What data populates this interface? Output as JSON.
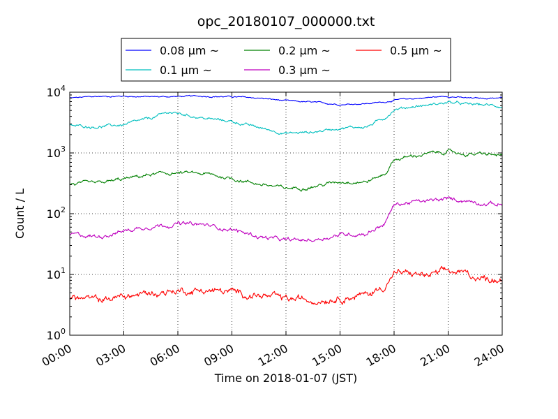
{
  "chart_data": {
    "type": "line",
    "title": "opc_20180107_000000.txt",
    "xlabel": "Time on 2018-01-07 (JST)",
    "ylabel": "Count / L",
    "y_scale": "log",
    "ylim": [
      1,
      10000
    ],
    "xlim": [
      "00:00",
      "24:00"
    ],
    "x_ticks": [
      "00:00",
      "03:00",
      "06:00",
      "09:00",
      "12:00",
      "15:00",
      "18:00",
      "21:00",
      "24:00"
    ],
    "y_ticks": [
      {
        "base": "10",
        "exp": "0"
      },
      {
        "base": "10",
        "exp": "1"
      },
      {
        "base": "10",
        "exp": "2"
      },
      {
        "base": "10",
        "exp": "3"
      },
      {
        "base": "10",
        "exp": "4"
      }
    ],
    "grid": true,
    "legend_position": "top-center",
    "series": [
      {
        "name": "0.08 µm ~",
        "color": "#0000ff",
        "x": [
          "00:00",
          "01:30",
          "03:00",
          "04:30",
          "06:00",
          "07:30",
          "09:00",
          "10:30",
          "12:00",
          "13:30",
          "15:00",
          "16:30",
          "17:30",
          "18:00",
          "19:00",
          "20:00",
          "21:00",
          "22:00",
          "23:00",
          "24:00"
        ],
        "values": [
          8000,
          8500,
          8600,
          8400,
          8500,
          8600,
          8400,
          8000,
          7200,
          6800,
          6300,
          6500,
          6900,
          7400,
          7800,
          8200,
          8600,
          8000,
          7900,
          8200
        ]
      },
      {
        "name": "0.1 µm ~",
        "color": "#00bfbf",
        "x": [
          "00:00",
          "01:30",
          "03:00",
          "04:30",
          "05:30",
          "06:30",
          "07:30",
          "09:00",
          "10:30",
          "12:00",
          "13:30",
          "15:00",
          "16:30",
          "17:30",
          "18:00",
          "19:00",
          "20:00",
          "21:00",
          "22:00",
          "23:00",
          "24:00"
        ],
        "values": [
          2800,
          2700,
          2900,
          3700,
          4700,
          4200,
          3700,
          3300,
          2600,
          2100,
          2200,
          2600,
          2700,
          3800,
          5200,
          5800,
          6200,
          6800,
          6300,
          6200,
          5800
        ]
      },
      {
        "name": "0.2 µm ~",
        "color": "#008000",
        "x": [
          "00:00",
          "01:30",
          "03:00",
          "04:30",
          "06:00",
          "07:30",
          "09:00",
          "10:30",
          "12:00",
          "13:30",
          "15:00",
          "16:30",
          "17:30",
          "18:00",
          "19:00",
          "20:00",
          "21:00",
          "22:00",
          "23:00",
          "24:00"
        ],
        "values": [
          310,
          310,
          370,
          440,
          470,
          450,
          380,
          310,
          260,
          280,
          340,
          340,
          450,
          780,
          880,
          980,
          1050,
          950,
          950,
          900
        ]
      },
      {
        "name": "0.3 µm ~",
        "color": "#bf00bf",
        "x": [
          "00:00",
          "01:30",
          "03:00",
          "04:30",
          "06:00",
          "07:30",
          "09:00",
          "10:30",
          "12:00",
          "13:30",
          "15:00",
          "16:30",
          "17:30",
          "18:00",
          "19:00",
          "20:00",
          "21:00",
          "22:00",
          "23:00",
          "24:00"
        ],
        "values": [
          46,
          42,
          52,
          63,
          68,
          65,
          55,
          42,
          36,
          37,
          45,
          48,
          70,
          140,
          155,
          160,
          175,
          165,
          150,
          140
        ]
      },
      {
        "name": "0.5 µm ~",
        "color": "#ff0000",
        "x": [
          "00:00",
          "01:30",
          "03:00",
          "04:30",
          "06:00",
          "07:30",
          "09:00",
          "10:30",
          "12:00",
          "13:30",
          "15:00",
          "16:30",
          "17:30",
          "18:00",
          "19:00",
          "20:00",
          "21:00",
          "22:00",
          "23:00",
          "24:00"
        ],
        "values": [
          4.2,
          3.8,
          4.3,
          4.9,
          5.4,
          5.5,
          5.1,
          4.5,
          3.9,
          3.8,
          4.2,
          4.6,
          6.5,
          10.5,
          10.2,
          9.5,
          11.2,
          10.2,
          8.5,
          8.5
        ]
      }
    ],
    "legend_layout": [
      [
        0,
        2,
        4
      ],
      [
        1,
        3
      ]
    ]
  }
}
